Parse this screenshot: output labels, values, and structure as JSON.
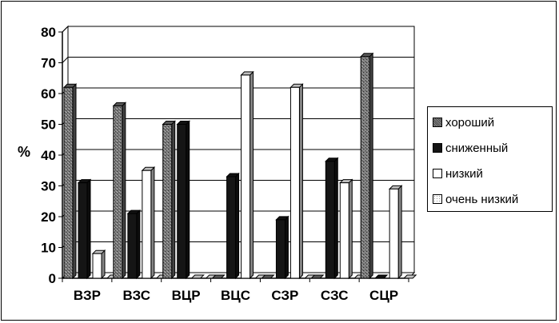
{
  "chart_data": {
    "type": "bar",
    "title": "",
    "xlabel": "",
    "ylabel": "%",
    "ylim": [
      0,
      80
    ],
    "yticks": [
      0,
      10,
      20,
      30,
      40,
      50,
      60,
      70,
      80
    ],
    "grid": true,
    "legend_position": "right",
    "categories": [
      "ВЗР",
      "ВЗС",
      "ВЦР",
      "ВЦС",
      "СЗР",
      "СЗС",
      "СЦР"
    ],
    "series": [
      {
        "name": "хороший",
        "values": [
          62,
          56,
          50,
          0,
          0,
          0,
          72
        ],
        "color": "#6e6e6e",
        "pattern": "speckled"
      },
      {
        "name": "сниженный",
        "values": [
          31,
          21,
          50,
          33,
          19,
          38,
          0
        ],
        "color": "#151515",
        "pattern": "solid"
      },
      {
        "name": "низкий",
        "values": [
          8,
          35,
          0,
          66,
          62,
          31,
          29
        ],
        "color": "#ffffff",
        "pattern": "white"
      },
      {
        "name": "очень низкий",
        "values": [
          0,
          0,
          0,
          0,
          0,
          0,
          0
        ],
        "color": "#f7f7f7",
        "pattern": "dotted"
      }
    ]
  }
}
